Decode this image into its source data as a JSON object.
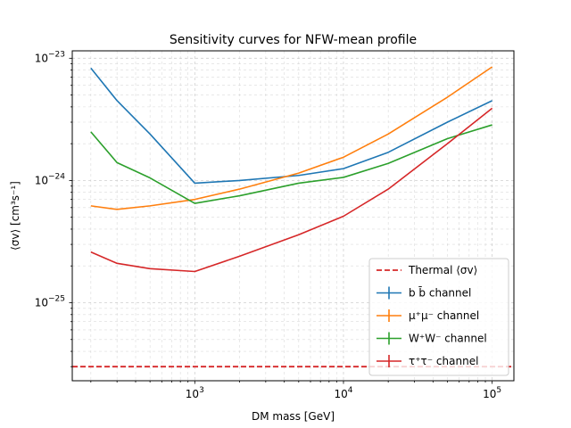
{
  "chart_data": {
    "type": "line",
    "title": "Sensitivity curves for NFW-mean profile",
    "xlabel": "DM mass [GeV]",
    "ylabel": "⟨σv⟩ [cm³s⁻¹]",
    "xscale": "log",
    "yscale": "log",
    "xlim": [
      150,
      140000
    ],
    "ylim": [
      2.3e-26,
      1.15e-23
    ],
    "x_ticks": [
      {
        "value": 1000,
        "base": "10",
        "exp": "3"
      },
      {
        "value": 10000,
        "base": "10",
        "exp": "4"
      },
      {
        "value": 100000,
        "base": "10",
        "exp": "5"
      }
    ],
    "y_ticks": [
      {
        "value": 1e-25,
        "base": "10",
        "exp": "−25"
      },
      {
        "value": 1e-24,
        "base": "10",
        "exp": "−24"
      },
      {
        "value": 1e-23,
        "base": "10",
        "exp": "−23"
      }
    ],
    "grid": true,
    "legend_position": "lower-right",
    "hline": {
      "name": "Thermal ⟨σv⟩",
      "value": 3e-26,
      "color": "#d62728",
      "style": "dashed"
    },
    "series": [
      {
        "name": "b b̄ channel",
        "color": "#1f77b4",
        "x": [
          200,
          300,
          500,
          1000,
          2000,
          5000,
          10000,
          20000,
          50000,
          100000
        ],
        "y": [
          8.3e-24,
          4.5e-24,
          2.4e-24,
          9.5e-25,
          1e-24,
          1.1e-24,
          1.25e-24,
          1.7e-24,
          3e-24,
          4.5e-24
        ]
      },
      {
        "name": "μ⁺μ⁻ channel",
        "color": "#ff7f0e",
        "x": [
          200,
          300,
          500,
          1000,
          2000,
          5000,
          10000,
          20000,
          50000,
          100000
        ],
        "y": [
          6.2e-25,
          5.8e-25,
          6.2e-25,
          7e-25,
          8.5e-25,
          1.15e-24,
          1.55e-24,
          2.4e-24,
          4.8e-24,
          8.5e-24
        ]
      },
      {
        "name": "W⁺W⁻ channel",
        "color": "#2ca02c",
        "x": [
          200,
          300,
          500,
          1000,
          2000,
          5000,
          10000,
          20000,
          50000,
          100000
        ],
        "y": [
          2.5e-24,
          1.4e-24,
          1.05e-24,
          6.5e-25,
          7.5e-25,
          9.5e-25,
          1.06e-24,
          1.38e-24,
          2.2e-24,
          2.85e-24
        ]
      },
      {
        "name": "τ⁺τ⁻ channel",
        "color": "#d62728",
        "x": [
          200,
          300,
          500,
          1000,
          2000,
          5000,
          10000,
          20000,
          50000,
          100000
        ],
        "y": [
          2.6e-25,
          2.1e-25,
          1.9e-25,
          1.8e-25,
          2.4e-25,
          3.6e-25,
          5.1e-25,
          8.5e-25,
          2e-24,
          3.9e-24
        ]
      }
    ],
    "legend": [
      {
        "label": "Thermal ⟨σv⟩",
        "color": "#d62728",
        "style": "dashed"
      },
      {
        "label": "b b̄ channel",
        "color": "#1f77b4",
        "style": "errorbar"
      },
      {
        "label": "μ⁺μ⁻ channel",
        "color": "#ff7f0e",
        "style": "errorbar"
      },
      {
        "label": "W⁺W⁻ channel",
        "color": "#2ca02c",
        "style": "errorbar"
      },
      {
        "label": "τ⁺τ⁻ channel",
        "color": "#d62728",
        "style": "errorbar"
      }
    ]
  }
}
